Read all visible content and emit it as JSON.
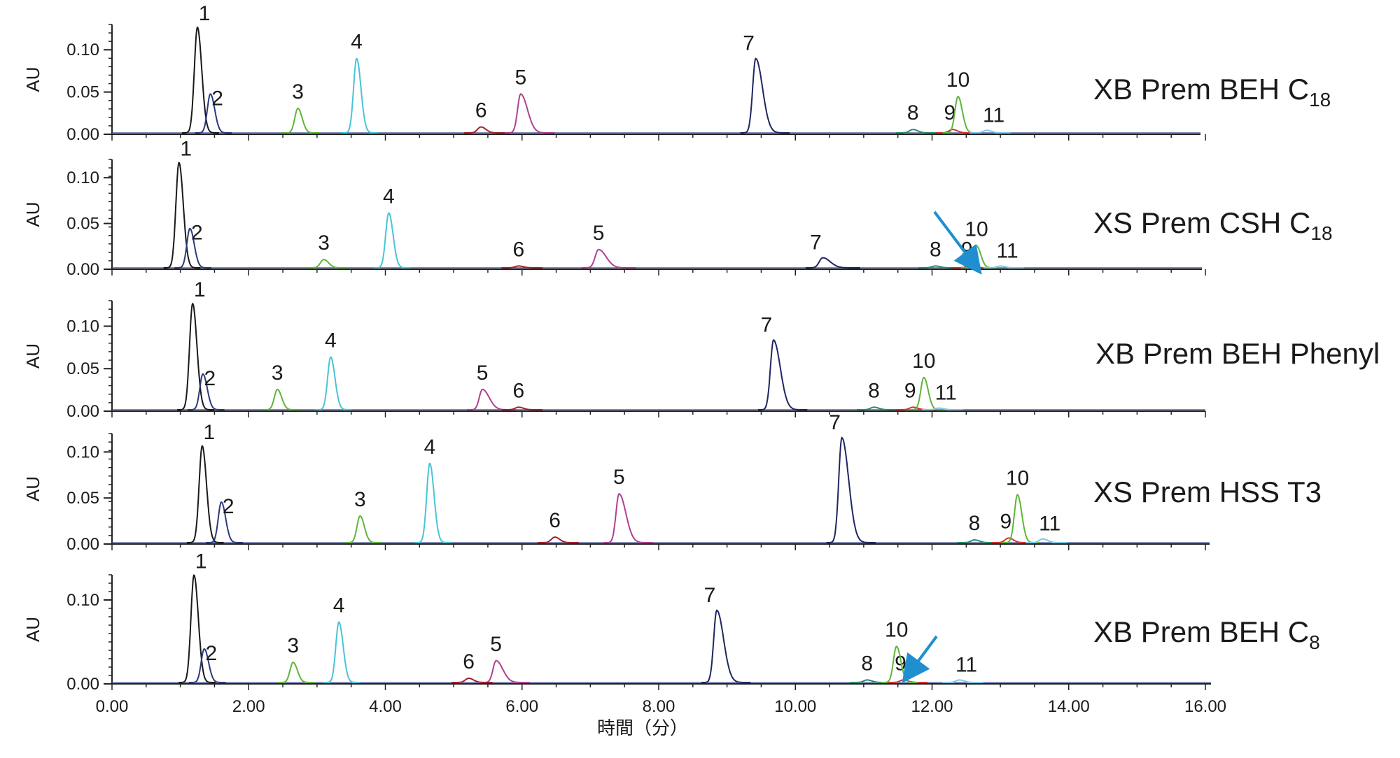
{
  "chart_data": {
    "type": "line",
    "title": "",
    "xlabel": "時間（分）",
    "xlim": [
      0,
      16
    ],
    "x_ticks": [
      "0.00",
      "2.00",
      "4.00",
      "6.00",
      "8.00",
      "10.00",
      "12.00",
      "14.00",
      "16.00"
    ],
    "ylabel": "AU",
    "grid": false,
    "legend": "none",
    "series_colors": {
      "1": "#1a1a1a",
      "2": "#2a3a7a",
      "3": "#5fb53a",
      "4": "#48c4d6",
      "5": "#b0408f",
      "6": "#a02030",
      "7": "#1f2660",
      "8": "#2a8a6a",
      "9": "#d03030",
      "10": "#5fb53a",
      "11": "#7ec8e8"
    },
    "panels": [
      {
        "label": "XB Prem BEH C",
        "subscript": "18",
        "ylim": [
          0,
          0.13
        ],
        "y_ticks": [
          "0.00",
          "0.05",
          "0.10"
        ],
        "peaks": [
          {
            "id": "1",
            "rt": 1.25,
            "height": 0.125
          },
          {
            "id": "2",
            "rt": 1.44,
            "height": 0.046
          },
          {
            "id": "3",
            "rt": 2.72,
            "height": 0.029
          },
          {
            "id": "4",
            "rt": 3.58,
            "height": 0.088
          },
          {
            "id": "5",
            "rt": 5.98,
            "height": 0.046
          },
          {
            "id": "6",
            "rt": 5.4,
            "height": 0.007
          },
          {
            "id": "7",
            "rt": 9.42,
            "height": 0.088
          },
          {
            "id": "8",
            "rt": 11.72,
            "height": 0.004
          },
          {
            "id": "9",
            "rt": 12.3,
            "height": 0.004
          },
          {
            "id": "10",
            "rt": 12.38,
            "height": 0.043
          },
          {
            "id": "11",
            "rt": 12.8,
            "height": 0.003
          }
        ]
      },
      {
        "label": "XS Prem CSH C",
        "subscript": "18",
        "ylim": [
          0,
          0.12
        ],
        "y_ticks": [
          "0.00",
          "0.05",
          "0.10"
        ],
        "peaks": [
          {
            "id": "1",
            "rt": 0.98,
            "height": 0.115
          },
          {
            "id": "2",
            "rt": 1.14,
            "height": 0.043
          },
          {
            "id": "3",
            "rt": 3.1,
            "height": 0.009
          },
          {
            "id": "4",
            "rt": 4.05,
            "height": 0.06
          },
          {
            "id": "5",
            "rt": 7.12,
            "height": 0.02
          },
          {
            "id": "6",
            "rt": 5.95,
            "height": 0.002
          },
          {
            "id": "7",
            "rt": 10.4,
            "height": 0.011
          },
          {
            "id": "8",
            "rt": 12.05,
            "height": 0.002
          },
          {
            "id": "9",
            "rt": 12.55,
            "height": 0.002
          },
          {
            "id": "10",
            "rt": 12.65,
            "height": 0.024
          },
          {
            "id": "11",
            "rt": 13.0,
            "height": 0.002
          }
        ]
      },
      {
        "label": "XB Prem BEH Phenyl",
        "subscript": "",
        "ylim": [
          0,
          0.13
        ],
        "y_ticks": [
          "0.00",
          "0.05",
          "0.10"
        ],
        "peaks": [
          {
            "id": "1",
            "rt": 1.18,
            "height": 0.125
          },
          {
            "id": "2",
            "rt": 1.33,
            "height": 0.042
          },
          {
            "id": "3",
            "rt": 2.42,
            "height": 0.024
          },
          {
            "id": "4",
            "rt": 3.2,
            "height": 0.062
          },
          {
            "id": "5",
            "rt": 5.42,
            "height": 0.024
          },
          {
            "id": "6",
            "rt": 5.95,
            "height": 0.003
          },
          {
            "id": "7",
            "rt": 9.68,
            "height": 0.082
          },
          {
            "id": "8",
            "rt": 11.15,
            "height": 0.003
          },
          {
            "id": "9",
            "rt": 11.72,
            "height": 0.003
          },
          {
            "id": "10",
            "rt": 11.88,
            "height": 0.038
          },
          {
            "id": "11",
            "rt": 12.1,
            "height": 0.002
          }
        ]
      },
      {
        "label": "XS Prem HSS T3",
        "subscript": "",
        "ylim": [
          0,
          0.12
        ],
        "y_ticks": [
          "0.00",
          "0.05",
          "0.10"
        ],
        "peaks": [
          {
            "id": "1",
            "rt": 1.32,
            "height": 0.105
          },
          {
            "id": "2",
            "rt": 1.6,
            "height": 0.044
          },
          {
            "id": "3",
            "rt": 3.63,
            "height": 0.029
          },
          {
            "id": "4",
            "rt": 4.65,
            "height": 0.086
          },
          {
            "id": "5",
            "rt": 7.42,
            "height": 0.053
          },
          {
            "id": "6",
            "rt": 6.48,
            "height": 0.006
          },
          {
            "id": "7",
            "rt": 10.68,
            "height": 0.114
          },
          {
            "id": "8",
            "rt": 12.62,
            "height": 0.003
          },
          {
            "id": "9",
            "rt": 13.12,
            "height": 0.005
          },
          {
            "id": "10",
            "rt": 13.25,
            "height": 0.052
          },
          {
            "id": "11",
            "rt": 13.62,
            "height": 0.004
          }
        ]
      },
      {
        "label": "XB Prem BEH C",
        "subscript": "8",
        "ylim": [
          0,
          0.13
        ],
        "y_ticks": [
          "0.00",
          "0.10"
        ],
        "peaks": [
          {
            "id": "1",
            "rt": 1.2,
            "height": 0.128
          },
          {
            "id": "2",
            "rt": 1.35,
            "height": 0.04
          },
          {
            "id": "3",
            "rt": 2.65,
            "height": 0.024
          },
          {
            "id": "4",
            "rt": 3.32,
            "height": 0.072
          },
          {
            "id": "5",
            "rt": 5.62,
            "height": 0.026
          },
          {
            "id": "6",
            "rt": 5.22,
            "height": 0.005
          },
          {
            "id": "7",
            "rt": 8.85,
            "height": 0.086
          },
          {
            "id": "8",
            "rt": 11.05,
            "height": 0.003
          },
          {
            "id": "9",
            "rt": 11.58,
            "height": 0.003
          },
          {
            "id": "10",
            "rt": 11.48,
            "height": 0.043
          },
          {
            "id": "11",
            "rt": 12.4,
            "height": 0.003
          }
        ]
      }
    ]
  }
}
